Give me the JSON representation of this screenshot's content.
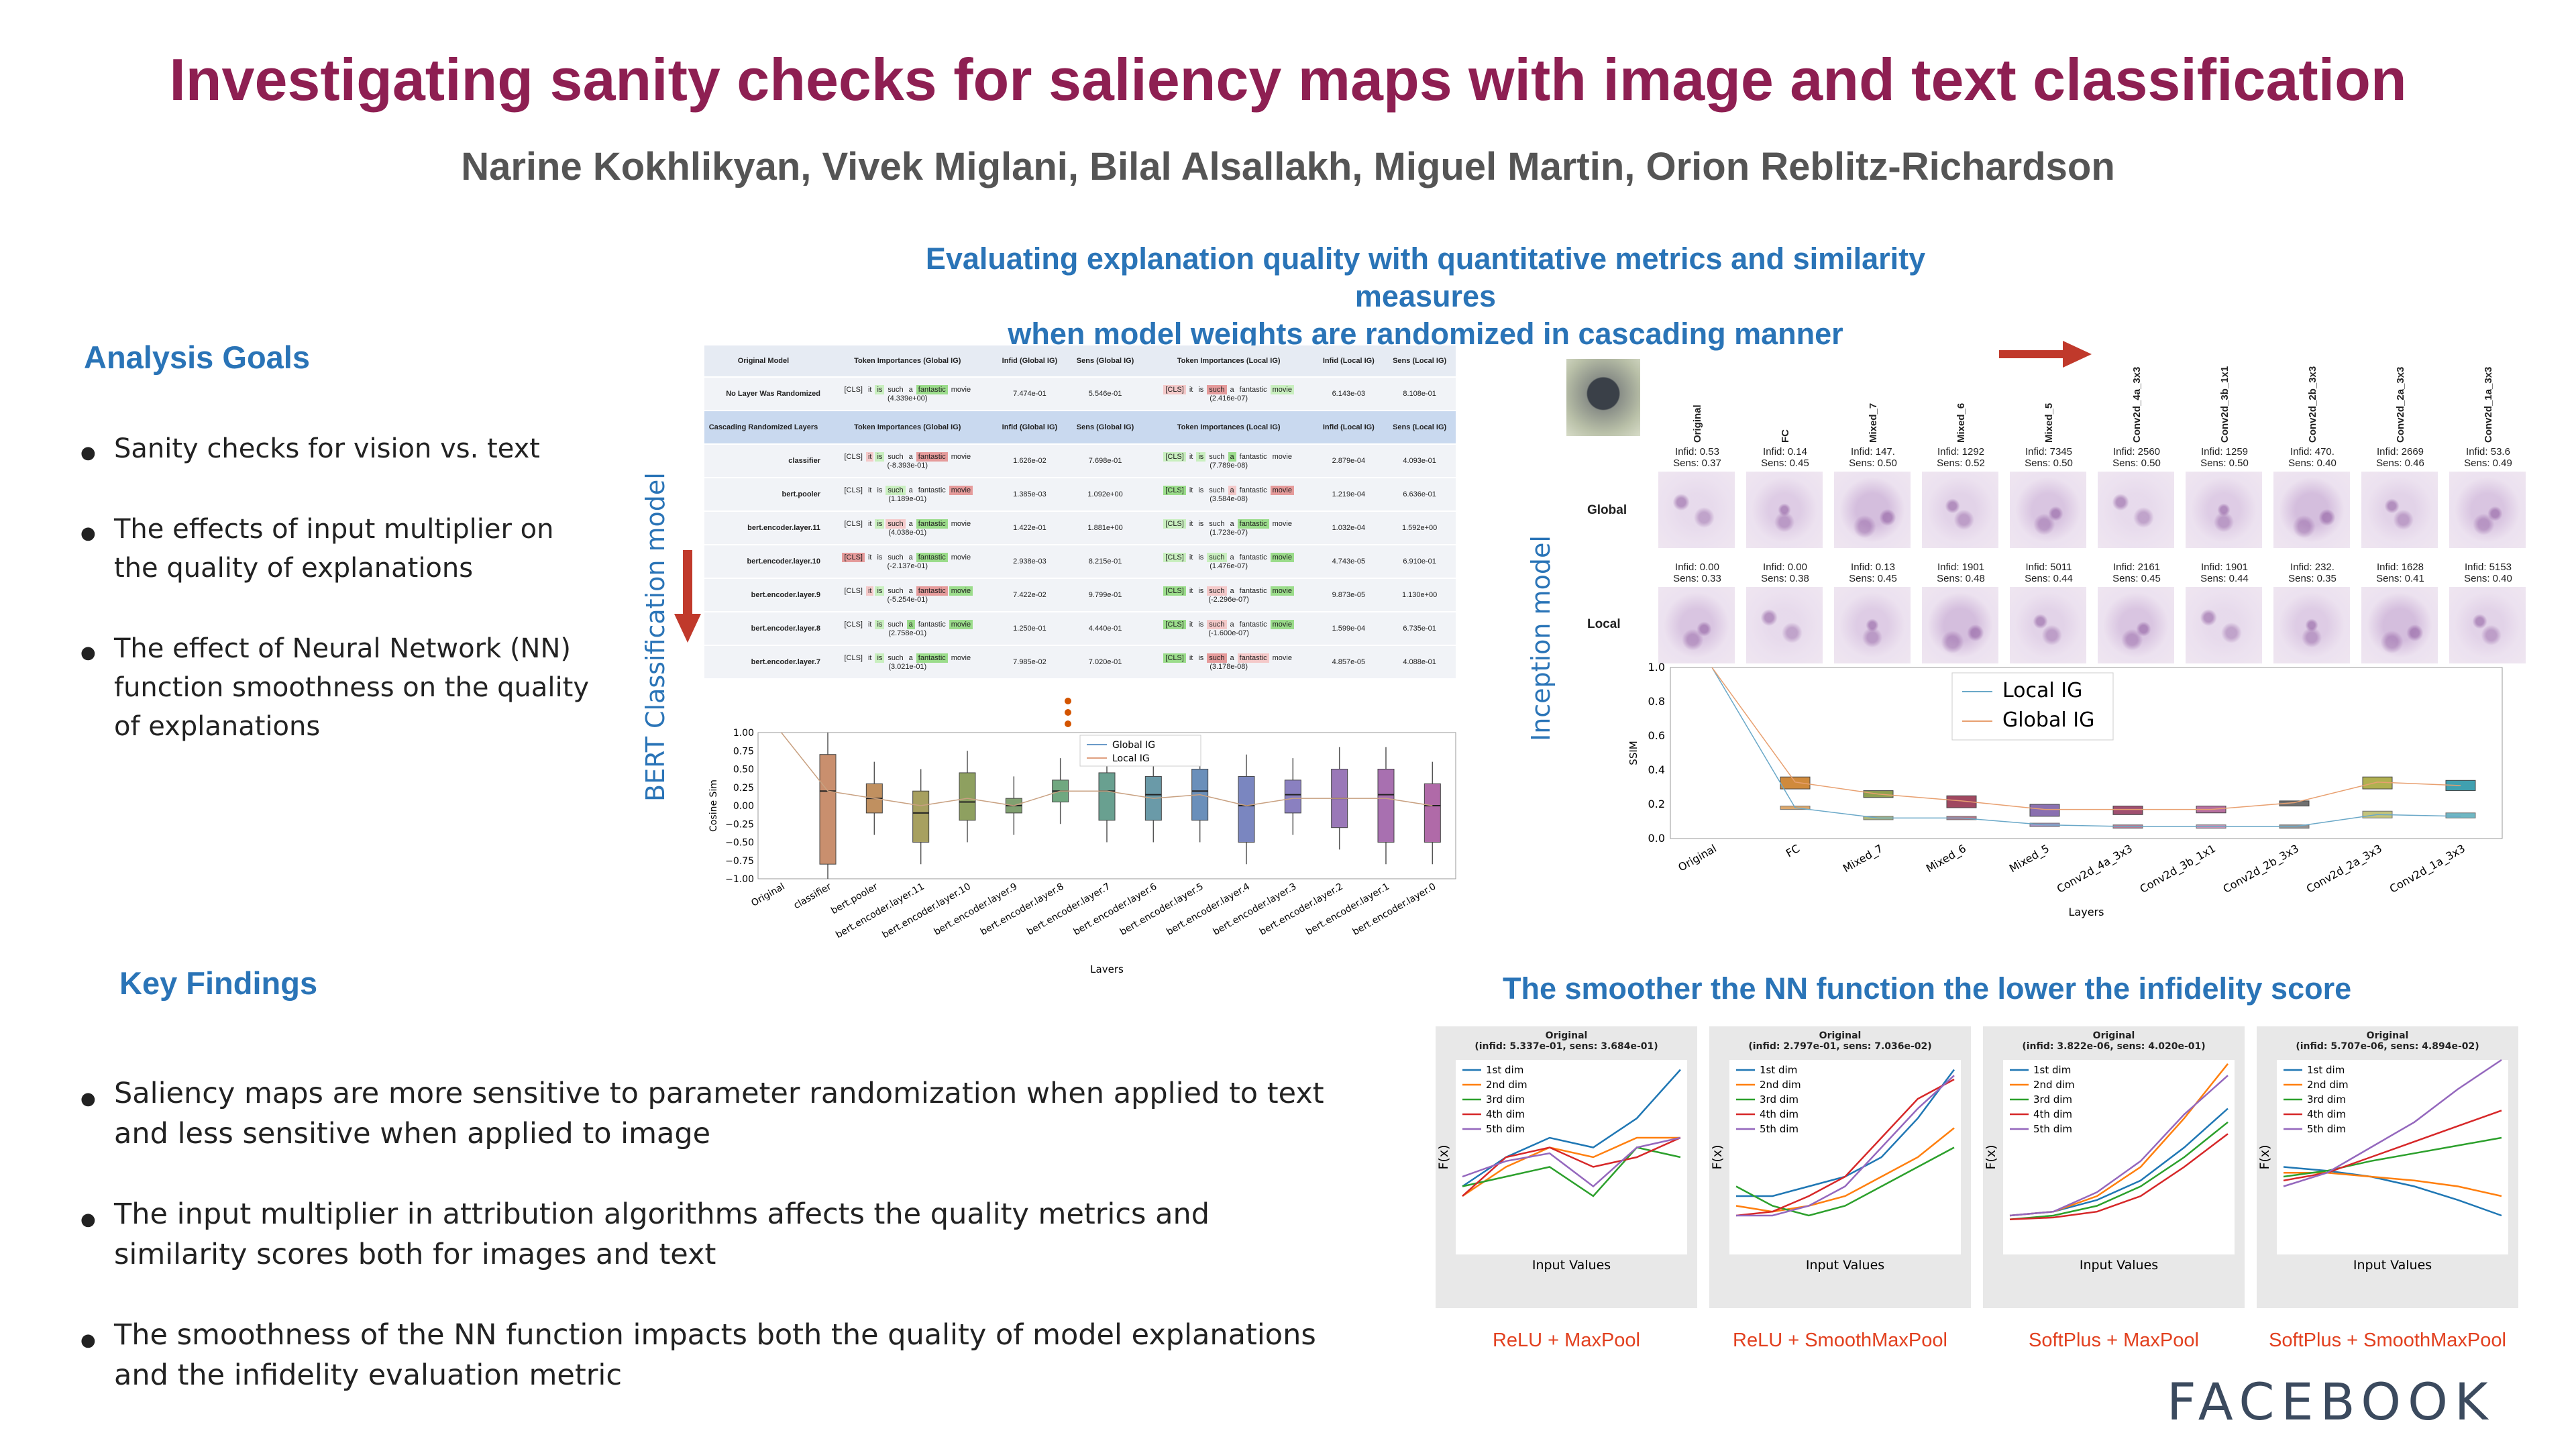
{
  "title": "Investigating sanity checks for saliency maps with image and text classification",
  "authors": "Narine Kokhlikyan, Vivek Miglani, Bilal Alsallakh, Miguel Martin, Orion Reblitz-Richardson",
  "section_title_line1": "Evaluating explanation quality with quantitative metrics and similarity measures",
  "section_title_line2": "when model weights are randomized in cascading manner",
  "analysis_goals": {
    "heading": "Analysis Goals",
    "items": [
      "Sanity checks for vision vs. text",
      "The effects of input multiplier on the quality of explanations",
      "The effect of Neural Network (NN) function smoothness on the quality of explanations"
    ]
  },
  "key_findings": {
    "heading": "Key Findings",
    "items": [
      "Saliency maps are more sensitive to parameter randomization when applied to text and less sensitive when applied to image",
      "The input multiplier in attribution algorithms affects the quality metrics and similarity scores both for images and text",
      "The smoothness of the NN function impacts both the quality of model explanations and the infidelity evaluation metric"
    ]
  },
  "bert": {
    "side_label": "BERT Classification model",
    "header1": [
      "Original Model",
      "Token Importances (Global IG)",
      "Infid (Global IG)",
      "Sens (Global IG)",
      "Token Importances (Local IG)",
      "Infid (Local IG)",
      "Sens (Local IG)"
    ],
    "header2": [
      "Cascading Randomized Layers",
      "Token Importances (Global IG)",
      "Infid (Global IG)",
      "Sens (Global IG)",
      "Token Importances (Local IG)",
      "Infid (Local IG)",
      "Sens (Local IG)"
    ],
    "tokens": [
      "[CLS]",
      "it",
      "is",
      "such",
      "a",
      "fantastic",
      "movie"
    ],
    "original_row": {
      "layer": "No Layer Was Randomized",
      "g_score": "(4.339e+00)",
      "g_infid": "7.474e-01",
      "g_sens": "5.546e-01",
      "l_score": "(2.416e-07)",
      "l_infid": "6.143e-03",
      "l_sens": "8.108e-01"
    },
    "rows": [
      {
        "layer": "classifier",
        "g_score": "(-8.393e-01)",
        "g_infid": "1.626e-02",
        "g_sens": "7.698e-01",
        "l_score": "(7.789e-08)",
        "l_infid": "2.879e-04",
        "l_sens": "4.093e-01"
      },
      {
        "layer": "bert.pooler",
        "g_score": "(1.189e-01)",
        "g_infid": "1.385e-03",
        "g_sens": "1.092e+00",
        "l_score": "(3.584e-08)",
        "l_infid": "1.219e-04",
        "l_sens": "6.636e-01"
      },
      {
        "layer": "bert.encoder.layer.11",
        "g_score": "(4.038e-01)",
        "g_infid": "1.422e-01",
        "g_sens": "1.881e+00",
        "l_score": "(1.723e-07)",
        "l_infid": "1.032e-04",
        "l_sens": "1.592e+00"
      },
      {
        "layer": "bert.encoder.layer.10",
        "g_score": "(-2.137e-01)",
        "g_infid": "2.938e-03",
        "g_sens": "8.215e-01",
        "l_score": "(1.476e-07)",
        "l_infid": "4.743e-05",
        "l_sens": "6.910e-01"
      },
      {
        "layer": "bert.encoder.layer.9",
        "g_score": "(-5.254e-01)",
        "g_infid": "7.422e-02",
        "g_sens": "9.799e-01",
        "l_score": "(-2.296e-07)",
        "l_infid": "9.873e-05",
        "l_sens": "1.130e+00"
      },
      {
        "layer": "bert.encoder.layer.8",
        "g_score": "(2.758e-01)",
        "g_infid": "1.250e-01",
        "g_sens": "4.440e-01",
        "l_score": "(-1.600e-07)",
        "l_infid": "1.599e-04",
        "l_sens": "6.735e-01"
      },
      {
        "layer": "bert.encoder.layer.7",
        "g_score": "(3.021e-01)",
        "g_infid": "7.985e-02",
        "g_sens": "7.020e-01",
        "l_score": "(3.178e-08)",
        "l_infid": "4.857e-05",
        "l_sens": "4.088e-01"
      }
    ]
  },
  "inception": {
    "side_label": "Inception model",
    "row_labels": [
      "Global",
      "Local"
    ],
    "columns": [
      "Original",
      "FC",
      "Mixed_7",
      "Mixed_6",
      "Mixed_5",
      "Conv2d_4a_3x3",
      "Conv2d_3b_1x1",
      "Conv2d_2b_3x3",
      "Conv2d_2a_3x3",
      "Conv2d_1a_3x3"
    ],
    "global_scores": [
      [
        "Infid: 0.53",
        "Sens: 0.37"
      ],
      [
        "Infid: 0.14",
        "Sens: 0.45"
      ],
      [
        "Infid: 147.",
        "Sens: 0.50"
      ],
      [
        "Infid: 1292",
        "Sens: 0.52"
      ],
      [
        "Infid: 7345",
        "Sens: 0.50"
      ],
      [
        "Infid: 2560",
        "Sens: 0.50"
      ],
      [
        "Infid: 1259",
        "Sens: 0.50"
      ],
      [
        "Infid: 470.",
        "Sens: 0.40"
      ],
      [
        "Infid: 2669",
        "Sens: 0.46"
      ],
      [
        "Infid: 53.6",
        "Sens: 0.49"
      ]
    ],
    "local_scores": [
      [
        "Infid: 0.00",
        "Sens: 0.33"
      ],
      [
        "Infid: 0.00",
        "Sens: 0.38"
      ],
      [
        "Infid: 0.13",
        "Sens: 0.45"
      ],
      [
        "Infid: 1901",
        "Sens: 0.48"
      ],
      [
        "Infid: 5011",
        "Sens: 0.44"
      ],
      [
        "Infid: 2161",
        "Sens: 0.45"
      ],
      [
        "Infid: 1901",
        "Sens: 0.44"
      ],
      [
        "Infid: 232.",
        "Sens: 0.35"
      ],
      [
        "Infid: 1628",
        "Sens: 0.41"
      ],
      [
        "Infid: 5153",
        "Sens: 0.40"
      ]
    ]
  },
  "smooth_title": "The smoother the NN function the lower the infidelity score",
  "smooth_panels": [
    {
      "title1": "Original",
      "title2": "(infid: 5.337e-01, sens: 3.684e-01)",
      "caption": "ReLU + MaxPool"
    },
    {
      "title1": "Original",
      "title2": "(infid: 2.797e-01, sens: 7.036e-02)",
      "caption": "ReLU + SmoothMaxPool"
    },
    {
      "title1": "Original",
      "title2": "(infid: 3.822e-06, sens: 4.020e-01)",
      "caption": "SoftPlus + MaxPool"
    },
    {
      "title1": "Original",
      "title2": "(infid: 5.707e-06, sens: 4.894e-02)",
      "caption": "SoftPlus + SmoothMaxPool"
    }
  ],
  "smooth_axes": {
    "xlabel": "Input Values",
    "ylabel": "F(x)",
    "legend": [
      "1st dim",
      "2nd dim",
      "3rd dim",
      "4th dim",
      "5th dim"
    ]
  },
  "logo": "FACEBOOK",
  "colors": {
    "title": "#8e1f52",
    "heading": "#2a74b7",
    "caption": "#e2401f",
    "arrow": "#c0392b"
  },
  "chart_data": [
    {
      "type": "box",
      "ylabel": "Cosine Sim",
      "xlabel": "Layers",
      "ylim": [
        -1.0,
        1.0
      ],
      "yticks": [
        "1.00",
        "0.75",
        "0.50",
        "0.25",
        "0.00",
        "−0.25",
        "−0.50",
        "−0.75",
        "−1.00"
      ],
      "categories": [
        "Original",
        "classifier",
        "bert.pooler",
        "bert.encoder.layer.11",
        "bert.encoder.layer.10",
        "bert.encoder.layer.9",
        "bert.encoder.layer.8",
        "bert.encoder.layer.7",
        "bert.encoder.layer.6",
        "bert.encoder.layer.5",
        "bert.encoder.layer.4",
        "bert.encoder.layer.3",
        "bert.encoder.layer.2",
        "bert.encoder.layer.1",
        "bert.encoder.layer.0"
      ],
      "legend": [
        "Global IG",
        "Local IG"
      ],
      "series": [
        {
          "name": "Global IG",
          "q1": [
            1,
            -0.8,
            -0.1,
            -0.5,
            -0.2,
            -0.1,
            0.05,
            -0.2,
            -0.2,
            -0.2,
            -0.5,
            -0.1,
            -0.3,
            -0.5,
            -0.5
          ],
          "q3": [
            1,
            0.7,
            0.3,
            0.2,
            0.45,
            0.1,
            0.35,
            0.45,
            0.4,
            0.5,
            0.4,
            0.35,
            0.5,
            0.5,
            0.3
          ],
          "median": [
            1,
            0.2,
            0.1,
            -0.1,
            0.05,
            0.0,
            0.2,
            0.2,
            0.15,
            0.2,
            0.0,
            0.15,
            0.1,
            0.15,
            0.0
          ],
          "colors": [
            "#888888",
            "#c98f6e",
            "#c09060",
            "#a7a060",
            "#8ea060",
            "#80a070",
            "#70a880",
            "#69a090",
            "#6a9aa8",
            "#6a8fba",
            "#7a86c0",
            "#8a80c0",
            "#9a78b8",
            "#a870b0",
            "#b06aa8"
          ]
        }
      ],
      "mean_line": [
        1,
        0.2,
        0.1,
        0.0,
        0.1,
        0.0,
        0.2,
        0.2,
        0.1,
        0.15,
        0.0,
        0.1,
        0.1,
        0.1,
        0.0
      ]
    },
    {
      "type": "box",
      "ylabel": "SSIM",
      "xlabel": "Layers",
      "ylim": [
        0.0,
        1.0
      ],
      "yticks": [
        "1.0",
        "0.8",
        "0.6",
        "0.4",
        "0.2",
        "0.0"
      ],
      "categories": [
        "Original",
        "FC",
        "Mixed_7",
        "Mixed_6",
        "Mixed_5",
        "Conv2d_4a_3x3",
        "Conv2d_3b_1x1",
        "Conv2d_2b_3x3",
        "Conv2d_2a_3x3",
        "Conv2d_1a_3x3"
      ],
      "legend": [
        "Local IG",
        "Global IG"
      ],
      "series": [
        {
          "name": "Local IG",
          "median": [
            1.0,
            0.18,
            0.12,
            0.12,
            0.08,
            0.07,
            0.07,
            0.07,
            0.14,
            0.13
          ],
          "q1": [
            1.0,
            0.17,
            0.11,
            0.11,
            0.07,
            0.06,
            0.06,
            0.06,
            0.12,
            0.12
          ],
          "q3": [
            1.0,
            0.19,
            0.13,
            0.13,
            0.09,
            0.08,
            0.08,
            0.08,
            0.16,
            0.15
          ],
          "color": "#6aa8c8"
        },
        {
          "name": "Global IG",
          "median": [
            1.0,
            0.33,
            0.26,
            0.22,
            0.17,
            0.17,
            0.17,
            0.21,
            0.33,
            0.31
          ],
          "q1": [
            1.0,
            0.29,
            0.24,
            0.18,
            0.13,
            0.14,
            0.15,
            0.19,
            0.29,
            0.28
          ],
          "q3": [
            1.0,
            0.36,
            0.28,
            0.25,
            0.2,
            0.19,
            0.19,
            0.22,
            0.36,
            0.34
          ],
          "colors": [
            "#888888",
            "#d08a3c",
            "#8fa050",
            "#a04860",
            "#8a70b0",
            "#a05070",
            "#b870a0",
            "#707070",
            "#b0b050",
            "#40a0b0"
          ]
        }
      ]
    },
    {
      "type": "line",
      "title": "Original\n(infid: 5.337e-01, sens: 3.684e-01)",
      "xlabel": "Input Values",
      "ylabel": "F(x)",
      "series": [
        {
          "name": "1st dim",
          "values": [
            0.35,
            0.5,
            0.6,
            0.55,
            0.7,
            0.95
          ],
          "color": "#1f77b4"
        },
        {
          "name": "2nd dim",
          "values": [
            0.3,
            0.45,
            0.55,
            0.5,
            0.6,
            0.6
          ],
          "color": "#ff7f0e"
        },
        {
          "name": "3rd dim",
          "values": [
            0.35,
            0.4,
            0.45,
            0.3,
            0.55,
            0.5
          ],
          "color": "#2ca02c"
        },
        {
          "name": "4th dim",
          "values": [
            0.3,
            0.5,
            0.55,
            0.45,
            0.5,
            0.6
          ],
          "color": "#d62728"
        },
        {
          "name": "5th dim",
          "values": [
            0.4,
            0.48,
            0.52,
            0.35,
            0.55,
            0.6
          ],
          "color": "#9467bd"
        }
      ]
    },
    {
      "type": "line",
      "title": "Original\n(infid: 2.797e-01, sens: 7.036e-02)",
      "xlabel": "Input Values",
      "ylabel": "F(x)",
      "series": [
        {
          "name": "1st dim",
          "values": [
            0.3,
            0.3,
            0.35,
            0.4,
            0.5,
            0.7,
            0.95
          ],
          "color": "#1f77b4"
        },
        {
          "name": "2nd dim",
          "values": [
            0.25,
            0.22,
            0.25,
            0.3,
            0.4,
            0.5,
            0.65
          ],
          "color": "#ff7f0e"
        },
        {
          "name": "3rd dim",
          "values": [
            0.35,
            0.25,
            0.2,
            0.25,
            0.35,
            0.45,
            0.55
          ],
          "color": "#2ca02c"
        },
        {
          "name": "4th dim",
          "values": [
            0.2,
            0.22,
            0.3,
            0.4,
            0.6,
            0.8,
            0.9
          ],
          "color": "#d62728"
        },
        {
          "name": "5th dim",
          "values": [
            0.2,
            0.2,
            0.25,
            0.35,
            0.55,
            0.75,
            0.92
          ],
          "color": "#9467bd"
        }
      ]
    },
    {
      "type": "line",
      "title": "Original\n(infid: 3.822e-06, sens: 4.020e-01)",
      "xlabel": "Input Values",
      "ylabel": "F(x)",
      "series": [
        {
          "name": "1st dim",
          "values": [
            0.2,
            0.22,
            0.28,
            0.38,
            0.55,
            0.75
          ],
          "color": "#1f77b4"
        },
        {
          "name": "2nd dim",
          "values": [
            0.2,
            0.22,
            0.3,
            0.45,
            0.7,
            0.98
          ],
          "color": "#ff7f0e"
        },
        {
          "name": "3rd dim",
          "values": [
            0.18,
            0.2,
            0.25,
            0.35,
            0.5,
            0.68
          ],
          "color": "#2ca02c"
        },
        {
          "name": "4th dim",
          "values": [
            0.18,
            0.19,
            0.22,
            0.3,
            0.45,
            0.62
          ],
          "color": "#d62728"
        },
        {
          "name": "5th dim",
          "values": [
            0.2,
            0.22,
            0.32,
            0.48,
            0.72,
            0.92
          ],
          "color": "#9467bd"
        }
      ]
    },
    {
      "type": "line",
      "title": "Original\n(infid: 5.707e-06, sens: 4.894e-02)",
      "xlabel": "Input Values",
      "ylabel": "F(x)",
      "series": [
        {
          "name": "1st dim",
          "values": [
            0.45,
            0.43,
            0.4,
            0.35,
            0.28,
            0.2
          ],
          "color": "#1f77b4"
        },
        {
          "name": "2nd dim",
          "values": [
            0.42,
            0.42,
            0.4,
            0.38,
            0.35,
            0.3
          ],
          "color": "#ff7f0e"
        },
        {
          "name": "3rd dim",
          "values": [
            0.4,
            0.43,
            0.48,
            0.52,
            0.56,
            0.6
          ],
          "color": "#2ca02c"
        },
        {
          "name": "4th dim",
          "values": [
            0.38,
            0.42,
            0.5,
            0.58,
            0.66,
            0.74
          ],
          "color": "#d62728"
        },
        {
          "name": "5th dim",
          "values": [
            0.35,
            0.42,
            0.55,
            0.68,
            0.85,
            1.0
          ],
          "color": "#9467bd"
        }
      ]
    }
  ]
}
